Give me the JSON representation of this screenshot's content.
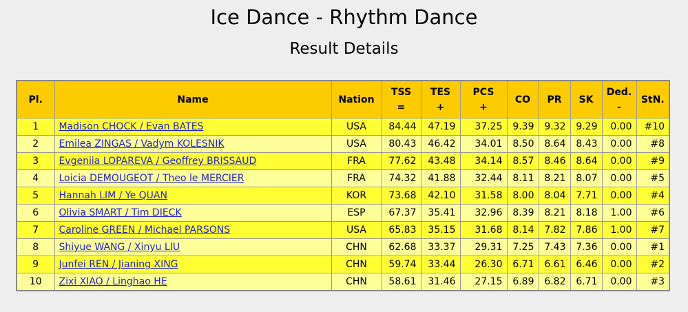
{
  "page": {
    "title": "Ice Dance - Rhythm Dance",
    "subtitle": "Result Details"
  },
  "table": {
    "headers": {
      "pl": "Pl.",
      "name": "Name",
      "nation": "Nation",
      "tss": [
        "TSS",
        "="
      ],
      "tes": [
        "TES",
        "+"
      ],
      "pcs": [
        "PCS",
        "+"
      ],
      "co": "CO",
      "pr": "PR",
      "sk": "SK",
      "ded": [
        "Ded.",
        "-"
      ],
      "stn": "StN."
    },
    "rows": [
      {
        "pl": "1",
        "name": "Madison CHOCK / Evan BATES",
        "nation": "USA",
        "tss": "84.44",
        "tes": "47.19",
        "pcs": "37.25",
        "co": "9.39",
        "pr": "9.32",
        "sk": "9.29",
        "ded": "0.00",
        "stn": "#10"
      },
      {
        "pl": "2",
        "name": "Emilea ZINGAS / Vadym KOLESNIK",
        "nation": "USA",
        "tss": "80.43",
        "tes": "46.42",
        "pcs": "34.01",
        "co": "8.50",
        "pr": "8.64",
        "sk": "8.43",
        "ded": "0.00",
        "stn": "#8"
      },
      {
        "pl": "3",
        "name": "Evgeniia LOPAREVA / Geoffrey BRISSAUD",
        "nation": "FRA",
        "tss": "77.62",
        "tes": "43.48",
        "pcs": "34.14",
        "co": "8.57",
        "pr": "8.46",
        "sk": "8.64",
        "ded": "0.00",
        "stn": "#9"
      },
      {
        "pl": "4",
        "name": "Loicia DEMOUGEOT / Theo le MERCIER",
        "nation": "FRA",
        "tss": "74.32",
        "tes": "41.88",
        "pcs": "32.44",
        "co": "8.11",
        "pr": "8.21",
        "sk": "8.07",
        "ded": "0.00",
        "stn": "#5"
      },
      {
        "pl": "5",
        "name": "Hannah LIM / Ye QUAN",
        "nation": "KOR",
        "tss": "73.68",
        "tes": "42.10",
        "pcs": "31.58",
        "co": "8.00",
        "pr": "8.04",
        "sk": "7.71",
        "ded": "0.00",
        "stn": "#4"
      },
      {
        "pl": "6",
        "name": "Olivia SMART / Tim DIECK",
        "nation": "ESP",
        "tss": "67.37",
        "tes": "35.41",
        "pcs": "32.96",
        "co": "8.39",
        "pr": "8.21",
        "sk": "8.18",
        "ded": "1.00",
        "stn": "#6"
      },
      {
        "pl": "7",
        "name": "Caroline GREEN / Michael PARSONS",
        "nation": "USA",
        "tss": "65.83",
        "tes": "35.15",
        "pcs": "31.68",
        "co": "8.14",
        "pr": "7.82",
        "sk": "7.86",
        "ded": "1.00",
        "stn": "#7"
      },
      {
        "pl": "8",
        "name": "Shiyue WANG / Xinyu LIU",
        "nation": "CHN",
        "tss": "62.68",
        "tes": "33.37",
        "pcs": "29.31",
        "co": "7.25",
        "pr": "7.43",
        "sk": "7.36",
        "ded": "0.00",
        "stn": "#1"
      },
      {
        "pl": "9",
        "name": "Junfei REN / Jianing XING",
        "nation": "CHN",
        "tss": "59.74",
        "tes": "33.44",
        "pcs": "26.30",
        "co": "6.71",
        "pr": "6.61",
        "sk": "6.46",
        "ded": "0.00",
        "stn": "#2"
      },
      {
        "pl": "10",
        "name": "Zixi XIAO / Linghao HE",
        "nation": "CHN",
        "tss": "58.61",
        "tes": "31.46",
        "pcs": "27.15",
        "co": "6.89",
        "pr": "6.82",
        "sk": "6.71",
        "ded": "0.00",
        "stn": "#3"
      }
    ]
  },
  "colors": {
    "header_bg": "#fccc00",
    "row_odd_bg": "#ffff33",
    "row_even_bg": "#ffff99",
    "link": "#2222cc",
    "page_bg": "#eeeeee"
  }
}
